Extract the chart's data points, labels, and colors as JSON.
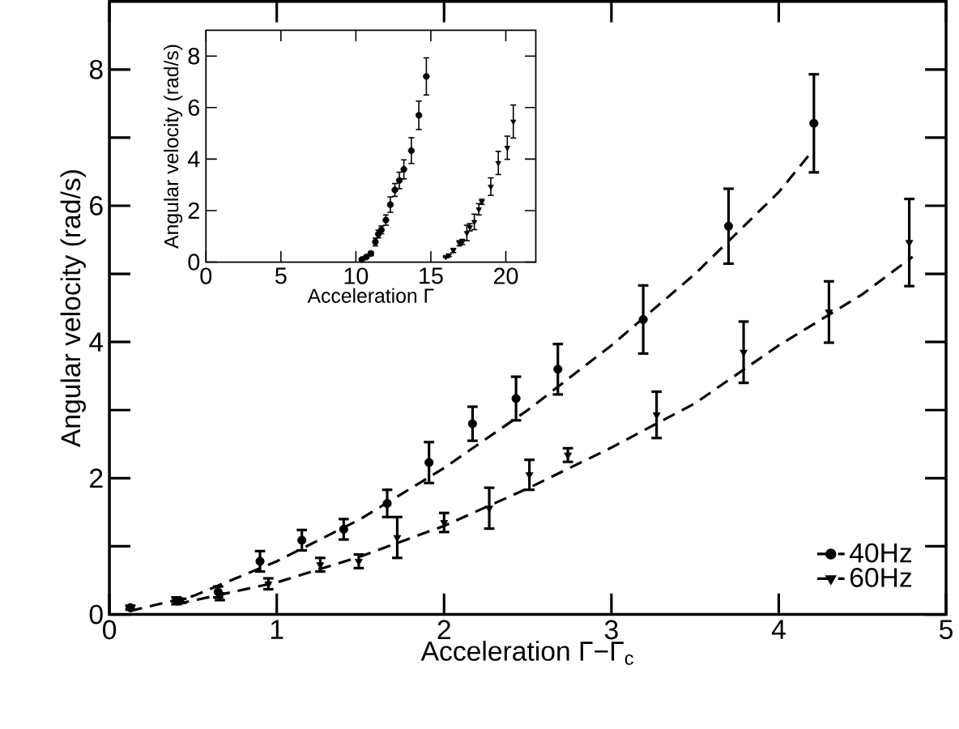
{
  "chart_data": [
    {
      "type": "scatter",
      "xlabel": "Acceleration  Γ−Γ$_{c}$",
      "ylabel": "Angular velocity (rad/s)",
      "xlim": [
        0,
        5
      ],
      "ylim": [
        0,
        9
      ],
      "xticks": [
        0,
        1,
        2,
        3,
        4,
        5
      ],
      "yticks": [
        0,
        {
          "value": 1,
          "label": null
        },
        2,
        {
          "value": 3,
          "label": null
        },
        4,
        {
          "value": 5,
          "label": null
        },
        6,
        {
          "value": 7,
          "label": null
        },
        8
      ],
      "legend": "bottom right",
      "series": [
        {
          "name": "40Hz",
          "marker": "circle",
          "color": "#000000",
          "x": [
            0.125,
            0.4,
            0.65,
            0.9,
            1.15,
            1.4,
            1.66,
            1.91,
            2.17,
            2.43,
            2.68,
            3.19,
            3.7,
            4.21
          ],
          "values": [
            0.1,
            0.2,
            0.33,
            0.78,
            1.09,
            1.25,
            1.63,
            2.23,
            2.8,
            3.17,
            3.6,
            4.33,
            5.7,
            7.21
          ],
          "errors": [
            0.03,
            0.05,
            0.08,
            0.15,
            0.15,
            0.15,
            0.2,
            0.3,
            0.25,
            0.32,
            0.37,
            0.5,
            0.55,
            0.72
          ]
        },
        {
          "name": "60Hz",
          "marker": "triangle",
          "color": "#000000",
          "x": [
            0.43,
            0.66,
            0.95,
            1.26,
            1.49,
            1.72,
            2.0,
            2.27,
            2.51,
            2.74,
            3.27,
            3.79,
            4.3,
            4.78
          ],
          "values": [
            0.2,
            0.26,
            0.45,
            0.73,
            0.78,
            1.13,
            1.35,
            1.56,
            2.05,
            2.34,
            2.93,
            3.85,
            4.44,
            5.46
          ],
          "errors": [
            0.03,
            0.05,
            0.08,
            0.1,
            0.1,
            0.3,
            0.14,
            0.3,
            0.22,
            0.1,
            0.34,
            0.45,
            0.45,
            0.64
          ]
        },
        {
          "type": "line",
          "line_style": "dashed",
          "marker": "none",
          "color": "#000000",
          "x": [
            0.12,
            0.5,
            1.0,
            1.5,
            2.0,
            2.5,
            3.0,
            3.5,
            4.0,
            4.2
          ],
          "values": [
            0.05,
            0.27,
            0.78,
            1.4,
            2.15,
            3.0,
            3.95,
            5.0,
            6.2,
            6.8
          ]
        },
        {
          "type": "line",
          "line_style": "dashed",
          "marker": "none",
          "color": "#000000",
          "x": [
            0.4,
            1.0,
            1.5,
            2.0,
            2.5,
            3.0,
            3.5,
            4.0,
            4.5,
            4.8
          ],
          "values": [
            0.15,
            0.47,
            0.85,
            1.3,
            1.85,
            2.45,
            3.1,
            3.95,
            4.7,
            5.25
          ]
        }
      ]
    },
    {
      "type": "scatter",
      "xlabel": "Acceleration  Γ",
      "ylabel": "Angular velocity (rad/s)",
      "xlim": [
        0,
        22
      ],
      "ylim": [
        0,
        9
      ],
      "xticks": [
        0,
        5,
        10,
        15,
        20
      ],
      "yticks": [
        0,
        2,
        4,
        6,
        8
      ],
      "series": [
        {
          "marker": "circle",
          "color": "#000000",
          "x": [
            10.4,
            10.7,
            11.0,
            11.3,
            11.5,
            11.7,
            12.0,
            12.3,
            12.6,
            12.9,
            13.2,
            13.7,
            14.2,
            14.7
          ],
          "values": [
            0.1,
            0.2,
            0.33,
            0.78,
            1.09,
            1.25,
            1.63,
            2.23,
            2.8,
            3.17,
            3.6,
            4.33,
            5.7,
            7.21
          ],
          "errors": [
            0.03,
            0.05,
            0.08,
            0.15,
            0.15,
            0.15,
            0.2,
            0.3,
            0.25,
            0.32,
            0.37,
            0.5,
            0.55,
            0.72
          ]
        },
        {
          "marker": "triangle",
          "color": "#000000",
          "x": [
            16.0,
            16.2,
            16.5,
            16.9,
            17.1,
            17.4,
            17.6,
            17.9,
            18.2,
            18.4,
            19.0,
            19.5,
            20.1,
            20.5
          ],
          "values": [
            0.2,
            0.26,
            0.45,
            0.73,
            0.78,
            1.13,
            1.35,
            1.56,
            2.05,
            2.34,
            2.93,
            3.85,
            4.44,
            5.46
          ],
          "errors": [
            0.03,
            0.05,
            0.08,
            0.1,
            0.1,
            0.3,
            0.14,
            0.3,
            0.22,
            0.1,
            0.34,
            0.45,
            0.45,
            0.64
          ]
        }
      ]
    }
  ]
}
